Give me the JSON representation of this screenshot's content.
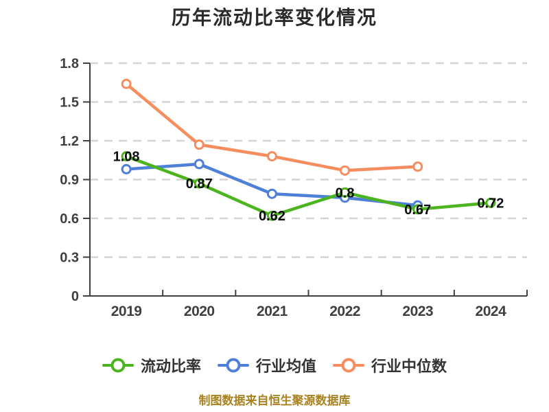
{
  "chart_data": {
    "type": "line",
    "title": "历年流动比率变化情况",
    "categories": [
      "2019",
      "2020",
      "2021",
      "2022",
      "2023",
      "2024"
    ],
    "series": [
      {
        "name": "流动比率",
        "color": "#4bb41e",
        "values": [
          1.08,
          0.87,
          0.62,
          0.8,
          0.67,
          0.72
        ],
        "show_labels": true,
        "marker": "circle-white-fill"
      },
      {
        "name": "行业均值",
        "color": "#4e80d8",
        "values": [
          0.98,
          1.02,
          0.79,
          0.76,
          0.7,
          null
        ],
        "show_labels": false,
        "marker": "circle-white-fill"
      },
      {
        "name": "行业中位数",
        "color": "#f68d5e",
        "values": [
          1.64,
          1.17,
          1.08,
          0.97,
          1.0,
          null
        ],
        "show_labels": false,
        "marker": "circle-white-fill"
      }
    ],
    "y_axis": {
      "min": 0,
      "max": 1.8,
      "step": 0.3,
      "tick_labels": [
        "0",
        "0.3",
        "0.6",
        "0.9",
        "1.2",
        "1.5",
        "1.8"
      ]
    },
    "xlabel": "",
    "ylabel": "",
    "grid": {
      "horizontal_dashed": true,
      "color": "#d4d4d4"
    },
    "axis_color": "#3f3f3f",
    "label_color": "#0a0a0a",
    "legend_position": "bottom"
  },
  "source_note": "制图数据来自恒生聚源数据库"
}
